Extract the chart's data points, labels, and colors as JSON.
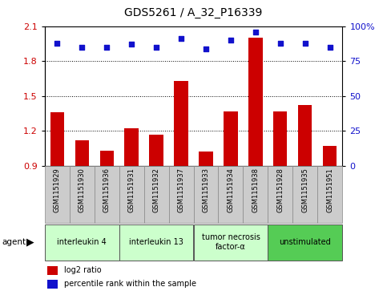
{
  "title": "GDS5261 / A_32_P16339",
  "samples": [
    "GSM1151929",
    "GSM1151930",
    "GSM1151936",
    "GSM1151931",
    "GSM1151932",
    "GSM1151937",
    "GSM1151933",
    "GSM1151934",
    "GSM1151938",
    "GSM1151928",
    "GSM1151935",
    "GSM1151951"
  ],
  "log2_ratio": [
    1.36,
    1.12,
    1.03,
    1.22,
    1.17,
    1.63,
    1.02,
    1.37,
    2.0,
    1.37,
    1.42,
    1.07
  ],
  "percentile": [
    88,
    85,
    85,
    87,
    85,
    91,
    84,
    90,
    96,
    88,
    88,
    85
  ],
  "ylim_left": [
    0.9,
    2.1
  ],
  "ylim_right": [
    0,
    100
  ],
  "yticks_left": [
    0.9,
    1.2,
    1.5,
    1.8,
    2.1
  ],
  "yticks_right": [
    0,
    25,
    50,
    75,
    100
  ],
  "bar_color": "#cc0000",
  "dot_color": "#1111cc",
  "agent_groups": [
    {
      "label": "interleukin 4",
      "start": 0,
      "end": 3,
      "color": "#ccffcc"
    },
    {
      "label": "interleukin 13",
      "start": 3,
      "end": 6,
      "color": "#ccffcc"
    },
    {
      "label": "tumor necrosis\nfactor-α",
      "start": 6,
      "end": 9,
      "color": "#ccffcc"
    },
    {
      "label": "unstimulated",
      "start": 9,
      "end": 12,
      "color": "#55cc55"
    }
  ],
  "legend_items": [
    {
      "color": "#cc0000",
      "label": "log2 ratio"
    },
    {
      "color": "#1111cc",
      "label": "percentile rank within the sample"
    }
  ],
  "sample_bg": "#cccccc"
}
